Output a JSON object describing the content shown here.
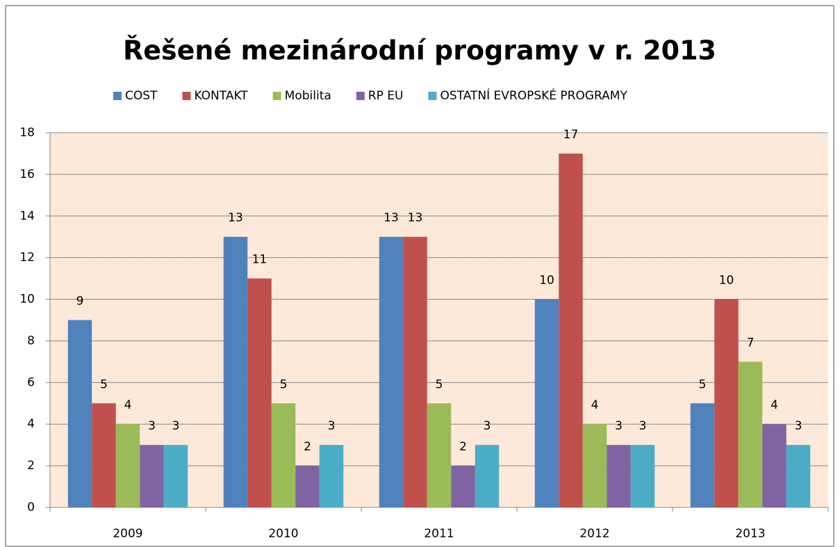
{
  "chart_data": {
    "type": "bar",
    "title": "Řešené mezinárodní programy v r. 2013",
    "categories": [
      "2009",
      "2010",
      "2011",
      "2012",
      "2013"
    ],
    "series": [
      {
        "name": "COST",
        "color": "#4f81bd",
        "values": [
          9,
          13,
          13,
          10,
          5
        ]
      },
      {
        "name": "KONTAKT",
        "color": "#c0504d",
        "values": [
          5,
          11,
          13,
          17,
          10
        ]
      },
      {
        "name": "Mobilita",
        "color": "#9bbb59",
        "values": [
          4,
          5,
          5,
          4,
          7
        ]
      },
      {
        "name": "RP EU",
        "color": "#8064a2",
        "values": [
          3,
          2,
          2,
          3,
          4
        ]
      },
      {
        "name": "OSTATNÍ EVROPSKÉ PROGRAMY",
        "color": "#4bacc6",
        "values": [
          3,
          3,
          3,
          3,
          3
        ]
      }
    ],
    "ylim": [
      0,
      18
    ],
    "yticks": [
      0,
      2,
      4,
      6,
      8,
      10,
      12,
      14,
      16,
      18
    ],
    "grid": true,
    "legend": "top",
    "plot_background": "#fde9d9"
  }
}
